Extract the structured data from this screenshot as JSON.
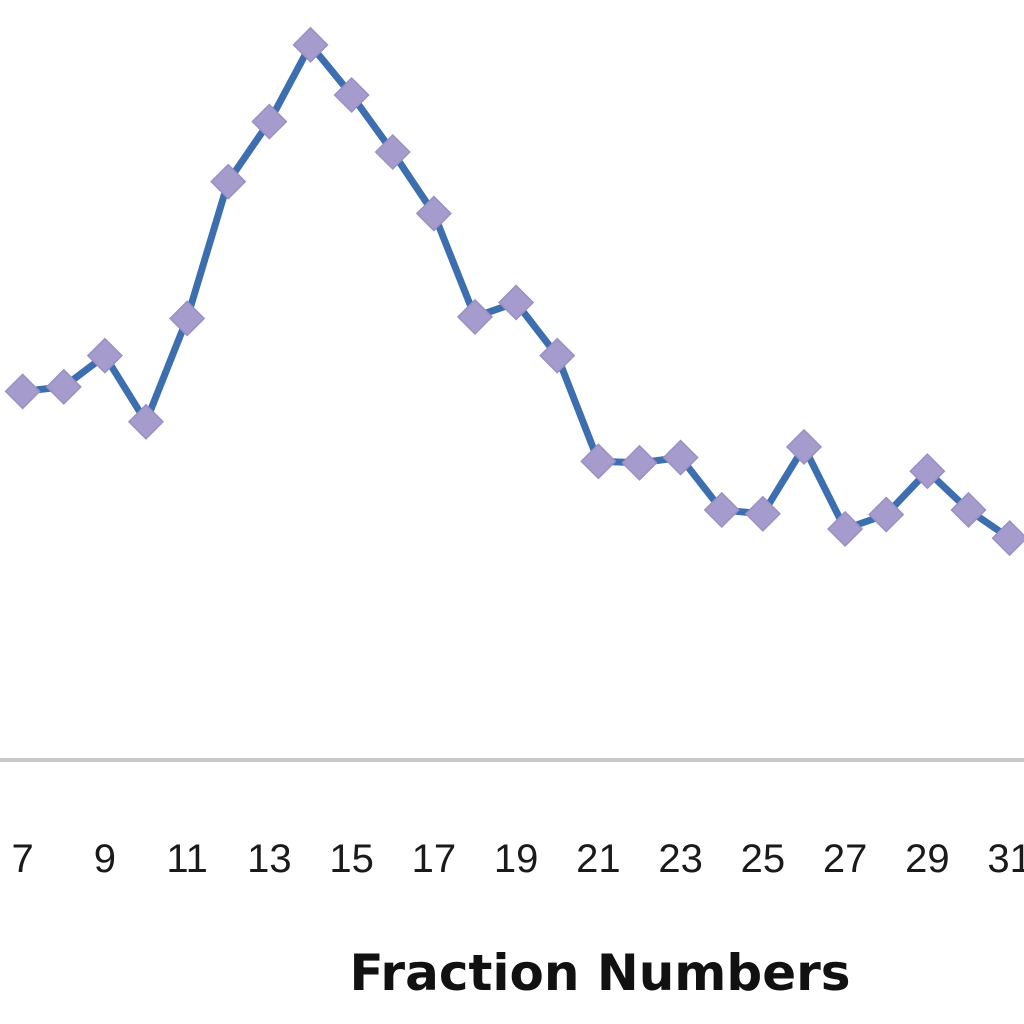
{
  "chart_data": {
    "type": "line",
    "title": "",
    "xlabel": "Fraction Numbers",
    "ylabel": "",
    "x_visible_range": [
      6.45,
      31.35
    ],
    "y_range": [
      0,
      100
    ],
    "grid": false,
    "legend": "none",
    "x_tick_labels": [
      "7",
      "9",
      "11",
      "13",
      "15",
      "17",
      "19",
      "21",
      "23",
      "25",
      "27",
      "29",
      "31"
    ],
    "series": [
      {
        "x": [
          7,
          8,
          9,
          10,
          11,
          12,
          13,
          14,
          15,
          16,
          17,
          18,
          19,
          20,
          21,
          22,
          23,
          24,
          25,
          26,
          27,
          28,
          29,
          30,
          31
        ],
        "values": [
          48.5,
          49.1,
          53.2,
          44.5,
          58.1,
          76.1,
          84.0,
          94.1,
          87.5,
          80.0,
          71.9,
          58.3,
          60.2,
          53.2,
          39.3,
          39.1,
          39.8,
          32.9,
          32.4,
          41.2,
          30.4,
          32.3,
          38.0,
          32.9,
          29.2
        ]
      }
    ],
    "colors": {
      "line": "#3d6fb0",
      "marker": "#a59ccd",
      "axis": "#c8c8c8"
    }
  }
}
